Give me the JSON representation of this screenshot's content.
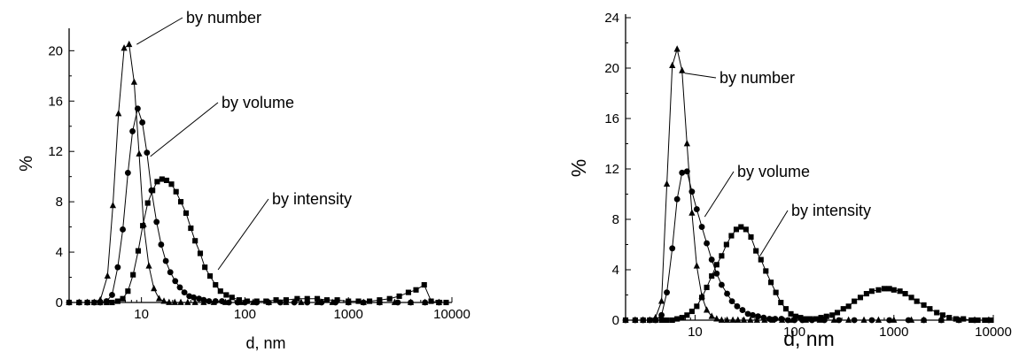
{
  "chart_data": [
    {
      "type": "line",
      "xlabel": "d, nm",
      "ylabel": "%",
      "xscale": "log",
      "xlim": [
        2,
        10000
      ],
      "ylim": [
        0,
        21.5
      ],
      "xticks": [
        10,
        100,
        1000,
        10000
      ],
      "xtick_labels": [
        "10",
        "100",
        "1000",
        "10000"
      ],
      "yticks": [
        0,
        4,
        8,
        12,
        16,
        20
      ],
      "ytick_labels": [
        "0",
        "4",
        "8",
        "12",
        "16",
        "20"
      ],
      "grid": false,
      "series": [
        {
          "name": "by number",
          "marker": "triangle",
          "x": [
            2.0,
            2.5,
            3.0,
            3.5,
            4.0,
            4.7,
            5.3,
            6.0,
            6.8,
            7.6,
            8.5,
            9.5,
            10.5,
            11.8,
            13.2,
            14.8,
            16.5,
            18.5,
            21,
            24,
            28,
            33,
            40,
            50,
            65,
            90,
            120,
            170,
            250,
            350,
            500,
            700,
            1000,
            1400,
            2000,
            2800,
            4000,
            5500,
            7500
          ],
          "y": [
            0,
            0,
            0,
            0,
            0.2,
            2.1,
            7.7,
            15.0,
            20.2,
            20.5,
            17.5,
            11.8,
            6.2,
            2.9,
            1.1,
            0.3,
            0.1,
            0,
            0,
            0,
            0,
            0,
            0,
            0,
            0,
            0,
            0,
            0,
            0,
            0,
            0,
            0,
            0,
            0,
            0,
            0,
            0,
            0,
            0
          ]
        },
        {
          "name": "by volume",
          "marker": "circle",
          "x": [
            2.0,
            2.5,
            3.0,
            3.5,
            4.0,
            4.6,
            5.2,
            5.9,
            6.6,
            7.4,
            8.2,
            9.2,
            10.2,
            11.3,
            12.5,
            14.0,
            15.5,
            17.2,
            19.0,
            21.2,
            23.5,
            26,
            29,
            32,
            36,
            40,
            45,
            52,
            60,
            70,
            85,
            100,
            130,
            170,
            220,
            300,
            400,
            550,
            750,
            1000,
            1400,
            2000,
            3000,
            4000,
            5500,
            7500
          ],
          "y": [
            0,
            0,
            0,
            0,
            0,
            0.1,
            0.6,
            2.8,
            5.8,
            10.3,
            13.6,
            15.4,
            14.3,
            11.9,
            8.9,
            6.4,
            4.6,
            3.3,
            2.4,
            1.7,
            1.2,
            0.8,
            0.5,
            0.4,
            0.3,
            0.2,
            0.1,
            0.1,
            0.1,
            0,
            0,
            0,
            0,
            0,
            0,
            0,
            0,
            0,
            0,
            0,
            0,
            0,
            0,
            0,
            0,
            0
          ]
        },
        {
          "name": "by intensity",
          "marker": "square",
          "x": [
            2.0,
            2.5,
            3.0,
            3.5,
            4.0,
            4.6,
            5.2,
            5.9,
            6.6,
            7.4,
            8.3,
            9.3,
            10.3,
            11.5,
            12.8,
            14.2,
            15.8,
            17.5,
            19.5,
            21.6,
            24,
            27,
            30,
            33,
            37,
            41,
            46,
            52,
            58,
            66,
            75,
            88,
            105,
            130,
            160,
            200,
            250,
            320,
            400,
            500,
            620,
            780,
            1000,
            1250,
            1600,
            2000,
            2500,
            3100,
            3800,
            4500,
            5400,
            6300,
            7500,
            8800
          ],
          "y": [
            0,
            0,
            0,
            0,
            0,
            0,
            0,
            0.1,
            0.3,
            0.9,
            2.2,
            4.1,
            6.1,
            7.9,
            8.9,
            9.6,
            9.8,
            9.7,
            9.4,
            8.8,
            8.0,
            7.1,
            5.9,
            4.9,
            3.9,
            2.8,
            2.1,
            1.4,
            0.9,
            0.6,
            0.4,
            0.2,
            0.1,
            0.1,
            0.1,
            0.2,
            0.2,
            0.3,
            0.3,
            0.3,
            0.2,
            0.2,
            0.1,
            0.1,
            0.1,
            0.2,
            0.3,
            0.5,
            0.8,
            1.0,
            1.4,
            0.1,
            0,
            0
          ]
        }
      ],
      "annotations": [
        {
          "text": "by number",
          "series": "by number"
        },
        {
          "text": "by volume",
          "series": "by volume"
        },
        {
          "text": "by intensity",
          "series": "by intensity"
        }
      ]
    },
    {
      "type": "line",
      "xlabel": "d, nm",
      "ylabel": "%",
      "xscale": "log",
      "xlim": [
        2,
        10000
      ],
      "ylim": [
        0,
        24
      ],
      "xticks": [
        10,
        100,
        1000,
        10000
      ],
      "xtick_labels": [
        "10",
        "100",
        "1000",
        "10000"
      ],
      "yticks": [
        0,
        4,
        8,
        12,
        16,
        20,
        24
      ],
      "ytick_labels": [
        "0",
        "4",
        "8",
        "12",
        "16",
        "20",
        "24"
      ],
      "grid": false,
      "series": [
        {
          "name": "by number",
          "marker": "triangle",
          "x": [
            2.0,
            2.5,
            3.0,
            3.5,
            4.0,
            4.6,
            5.2,
            5.9,
            6.6,
            7.4,
            8.3,
            9.3,
            10.4,
            11.7,
            13.1,
            14.7,
            16.5,
            18.5,
            21,
            24,
            27,
            31,
            36,
            42,
            50,
            60,
            75,
            95,
            130,
            180,
            250,
            350,
            500,
            700,
            1000,
            1500,
            2000,
            3000,
            4500,
            6500,
            9000
          ],
          "y": [
            0,
            0,
            0,
            0,
            0.2,
            1.5,
            10.8,
            20.2,
            21.5,
            19.8,
            14.0,
            8.5,
            4.3,
            1.9,
            0.8,
            0.3,
            0.1,
            0,
            0,
            0,
            0,
            0,
            0,
            0,
            0,
            0,
            0,
            0,
            0,
            0,
            0,
            0,
            0,
            0,
            0,
            0,
            0,
            0,
            0,
            0,
            0
          ]
        },
        {
          "name": "by volume",
          "marker": "circle",
          "x": [
            2.0,
            2.5,
            3.0,
            3.5,
            4.0,
            4.6,
            5.2,
            5.9,
            6.6,
            7.4,
            8.3,
            9.3,
            10.4,
            11.7,
            13.1,
            14.7,
            16.5,
            18.5,
            21,
            23.5,
            26.5,
            30,
            34,
            38,
            43,
            49,
            56,
            64,
            74,
            86,
            100,
            120,
            150,
            200,
            280,
            400,
            600,
            900,
            1400,
            2000,
            3000,
            4500,
            6500,
            9000
          ],
          "y": [
            0,
            0,
            0,
            0,
            0,
            0.4,
            2.2,
            5.7,
            9.6,
            11.7,
            11.8,
            10.2,
            8.8,
            7.4,
            6.1,
            4.8,
            3.7,
            2.8,
            2.1,
            1.5,
            1.1,
            0.8,
            0.5,
            0.4,
            0.3,
            0.2,
            0.1,
            0.1,
            0.1,
            0,
            0,
            0,
            0,
            0,
            0,
            0,
            0,
            0,
            0,
            0,
            0,
            0,
            0,
            0
          ]
        },
        {
          "name": "by intensity",
          "marker": "square",
          "x": [
            2.0,
            2.5,
            3.0,
            3.5,
            4.0,
            4.6,
            5.2,
            5.9,
            6.6,
            7.4,
            8.3,
            9.3,
            10.4,
            11.7,
            13.1,
            14.7,
            16.5,
            18.5,
            20.7,
            23.2,
            26,
            29,
            32.5,
            36.5,
            41,
            46,
            51.5,
            58,
            65,
            73,
            82,
            92,
            103,
            115,
            130,
            145,
            165,
            185,
            210,
            240,
            270,
            310,
            350,
            400,
            460,
            530,
            600,
            700,
            800,
            900,
            1000,
            1150,
            1300,
            1500,
            1700,
            2000,
            2300,
            2700,
            3100,
            3600,
            4200,
            5000,
            6000,
            7000,
            8200,
            9500
          ],
          "y": [
            0,
            0,
            0,
            0,
            0,
            0,
            0,
            0,
            0.1,
            0.2,
            0.4,
            0.7,
            1.1,
            1.8,
            2.6,
            3.5,
            4.4,
            5.1,
            6.0,
            6.7,
            7.2,
            7.4,
            7.2,
            6.6,
            5.5,
            4.8,
            3.9,
            3.0,
            2.2,
            1.4,
            0.9,
            0.5,
            0.3,
            0.2,
            0.1,
            0.1,
            0.1,
            0.2,
            0.3,
            0.4,
            0.6,
            0.9,
            1.1,
            1.5,
            1.8,
            2.1,
            2.3,
            2.4,
            2.5,
            2.5,
            2.4,
            2.3,
            2.1,
            1.8,
            1.5,
            1.2,
            0.9,
            0.6,
            0.4,
            0.2,
            0.1,
            0.1,
            0,
            0,
            0,
            0
          ]
        }
      ],
      "annotations": [
        {
          "text": "by number",
          "series": "by number"
        },
        {
          "text": "by volume",
          "series": "by volume"
        },
        {
          "text": "by intensity",
          "series": "by intensity"
        }
      ]
    }
  ]
}
